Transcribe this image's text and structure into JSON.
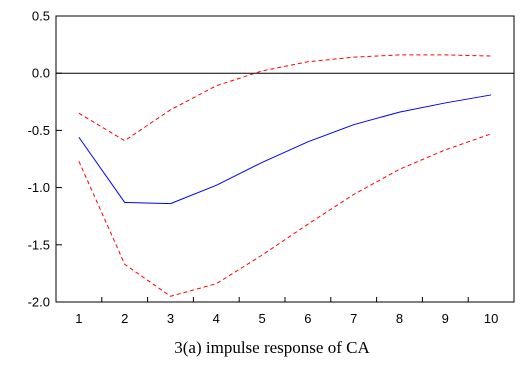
{
  "chart_data": {
    "type": "line",
    "caption": "3(a) impulse response of CA",
    "x": [
      1,
      2,
      3,
      4,
      5,
      6,
      7,
      8,
      9,
      10
    ],
    "xticks": [
      "1",
      "2",
      "3",
      "4",
      "5",
      "6",
      "7",
      "8",
      "9",
      "10"
    ],
    "ylim": [
      -2.0,
      0.5
    ],
    "yticks": [
      {
        "value": 0.5,
        "label": "0.5"
      },
      {
        "value": 0.0,
        "label": "0.0"
      },
      {
        "value": -0.5,
        "label": "-0.5"
      },
      {
        "value": -1.0,
        "label": "-1.0"
      },
      {
        "value": -1.5,
        "label": "-1.5"
      },
      {
        "value": -2.0,
        "label": "-2.0"
      }
    ],
    "zero_line": true,
    "grid": false,
    "legend": "none",
    "series": [
      {
        "role": "response",
        "color": "#0000ff",
        "style": "solid",
        "values": [
          -0.56,
          -1.13,
          -1.14,
          -0.98,
          -0.78,
          -0.6,
          -0.45,
          -0.34,
          -0.26,
          -0.19
        ]
      },
      {
        "role": "upper-band",
        "color": "#ff0000",
        "style": "dashed",
        "values": [
          -0.35,
          -0.59,
          -0.32,
          -0.11,
          0.02,
          0.1,
          0.14,
          0.16,
          0.16,
          0.15
        ]
      },
      {
        "role": "lower-band",
        "color": "#ff0000",
        "style": "dashed",
        "values": [
          -0.77,
          -1.67,
          -1.95,
          -1.84,
          -1.59,
          -1.32,
          -1.06,
          -0.84,
          -0.67,
          -0.53
        ]
      }
    ]
  }
}
